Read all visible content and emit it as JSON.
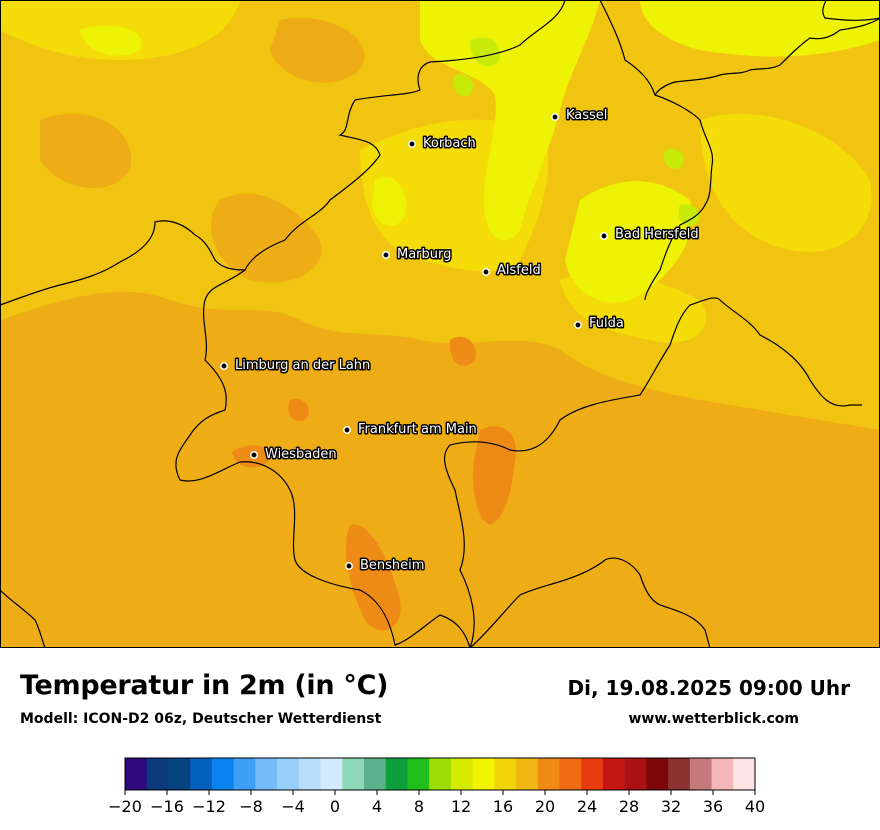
{
  "title": "Temperatur in 2m (in °C)",
  "subtitle": "Modell: ICON-D2 06z, Deutscher Wetterdienst",
  "datetime": "Di, 19.08.2025 09:00 Uhr",
  "website": "www.wetterblick.com",
  "cities": [
    {
      "name": "Kassel"
    },
    {
      "name": "Korbach"
    },
    {
      "name": "Bad Hersfeld"
    },
    {
      "name": "Marburg"
    },
    {
      "name": "Alsfeld"
    },
    {
      "name": "Fulda"
    },
    {
      "name": "Limburg an der Lahn"
    },
    {
      "name": "Frankfurt am Main"
    },
    {
      "name": "Wiesbaden"
    },
    {
      "name": "Bensheim"
    }
  ],
  "legend": {
    "unit": "°C",
    "min": -20,
    "max": 40,
    "step": 2,
    "tick_labels": [
      "−20",
      "−16",
      "−12",
      "−8",
      "−4",
      "0",
      "4",
      "8",
      "12",
      "16",
      "20",
      "24",
      "28",
      "32",
      "36",
      "40"
    ],
    "colors": [
      "#2e0a7e",
      "#0d3a7d",
      "#07437e",
      "#0461bb",
      "#0a82f0",
      "#3d9ff5",
      "#75bcf9",
      "#98cefa",
      "#b8defc",
      "#d3eafd",
      "#8fd9b8",
      "#5bb38d",
      "#0e9e3c",
      "#20be1a",
      "#9ddd05",
      "#d5ea00",
      "#f2f400",
      "#f2d40b",
      "#efb812",
      "#ef8b12",
      "#ee6b12",
      "#e83b10",
      "#c21615",
      "#ab1015",
      "#7d0708",
      "#8a3232",
      "#c47a7a",
      "#f4b7b7",
      "#fde4e4"
    ]
  },
  "map_colors": {
    "base": "#f0c410",
    "warm": "#eeac16",
    "warmer": "#ee8a16",
    "cool": "#f3dc08",
    "cooler": "#eef305",
    "coolest": "#c8ea08",
    "border": "#000000"
  }
}
